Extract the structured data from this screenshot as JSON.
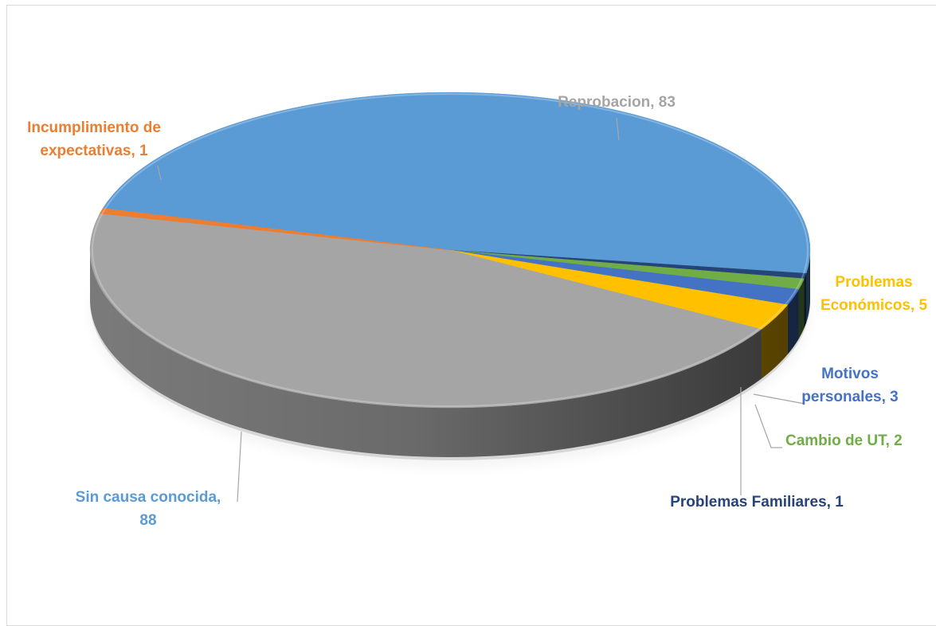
{
  "chart_data": {
    "type": "pie",
    "title": "",
    "legend": "none",
    "slices": [
      {
        "label": "Sin causa conocida",
        "value": 88,
        "color": "#5b9bd5",
        "label_lines": [
          "Sin causa conocida,",
          "88"
        ]
      },
      {
        "label": "Problemas  Familiares",
        "value": 1,
        "color": "#264478",
        "label_lines": [
          "Problemas  Familiares, 1"
        ]
      },
      {
        "label": "Cambio de UT",
        "value": 2,
        "color": "#70ad47",
        "label_lines": [
          "Cambio de UT, 2"
        ]
      },
      {
        "label": "Motivos personales",
        "value": 3,
        "color": "#4472c4",
        "label_lines": [
          "Motivos",
          "personales, 3"
        ]
      },
      {
        "label": "Problemas Económicos",
        "value": 5,
        "color": "#ffc000",
        "label_lines": [
          "Problemas",
          "Económicos, 5"
        ]
      },
      {
        "label": "Reprobacion",
        "value": 83,
        "color": "#a5a5a5",
        "label_lines": [
          "Reprobacion, 83"
        ]
      },
      {
        "label": "Incumplimiento de expectativas",
        "value": 1,
        "color": "#ed7d31",
        "label_lines": [
          "Incumplimiento de",
          "expectativas, 1"
        ]
      }
    ]
  }
}
